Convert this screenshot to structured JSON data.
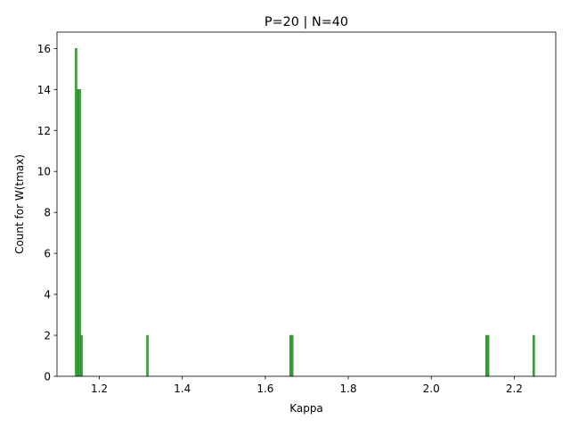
{
  "chart_data": {
    "type": "bar",
    "title": "P=20 | N=40",
    "xlabel": "Kappa",
    "ylabel": "Count for W(tmax)",
    "xlim": [
      1.098,
      2.3
    ],
    "ylim": [
      0,
      16.8
    ],
    "xticks": [
      1.2,
      1.4,
      1.6,
      1.8,
      2.0,
      2.2
    ],
    "xtick_labels": [
      "1.2",
      "1.4",
      "1.6",
      "1.8",
      "2.0",
      "2.2"
    ],
    "yticks": [
      0,
      2,
      4,
      6,
      8,
      10,
      12,
      14,
      16
    ],
    "ytick_labels": [
      "0",
      "2",
      "4",
      "6",
      "8",
      "10",
      "12",
      "14",
      "16"
    ],
    "bin_width": 0.0044,
    "bars": [
      {
        "x": 1.144,
        "value": 16
      },
      {
        "x": 1.1484,
        "value": 14
      },
      {
        "x": 1.1528,
        "value": 14
      },
      {
        "x": 1.1572,
        "value": 2
      },
      {
        "x": 1.316,
        "value": 2
      },
      {
        "x": 1.661,
        "value": 2
      },
      {
        "x": 1.665,
        "value": 2
      },
      {
        "x": 2.133,
        "value": 2
      },
      {
        "x": 2.137,
        "value": 2
      },
      {
        "x": 2.247,
        "value": 2
      }
    ],
    "bar_color": "#2ca02c",
    "bar_edge_color": "#1a7a1a",
    "grid": false,
    "legend": "none"
  }
}
